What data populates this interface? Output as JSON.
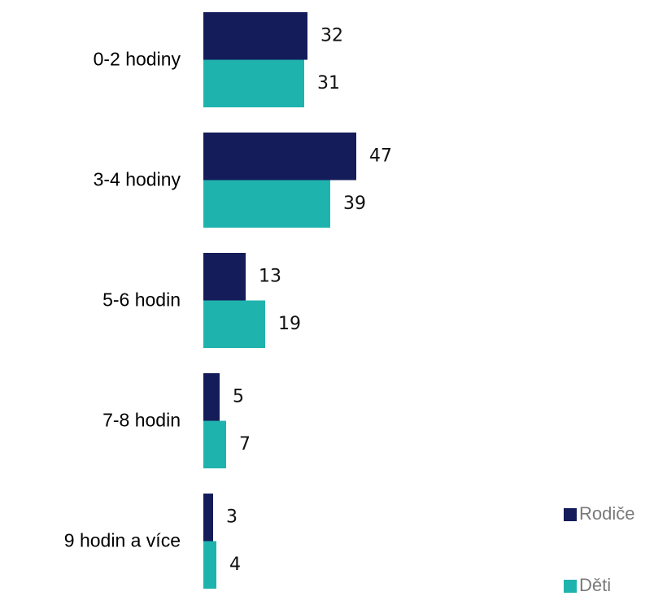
{
  "chart_data": {
    "type": "bar",
    "horizontal": true,
    "categories": [
      "0-2 hodiny",
      "3-4 hodiny",
      "5-6 hodin",
      "7-8 hodin",
      "9 hodin a více"
    ],
    "series": [
      {
        "name": "Rodiče",
        "color": "#141c5a",
        "values": [
          32,
          47,
          13,
          5,
          3
        ]
      },
      {
        "name": "Děti",
        "color": "#1fb3ad",
        "values": [
          31,
          39,
          19,
          7,
          4
        ]
      }
    ],
    "legend": "bottom-right"
  }
}
